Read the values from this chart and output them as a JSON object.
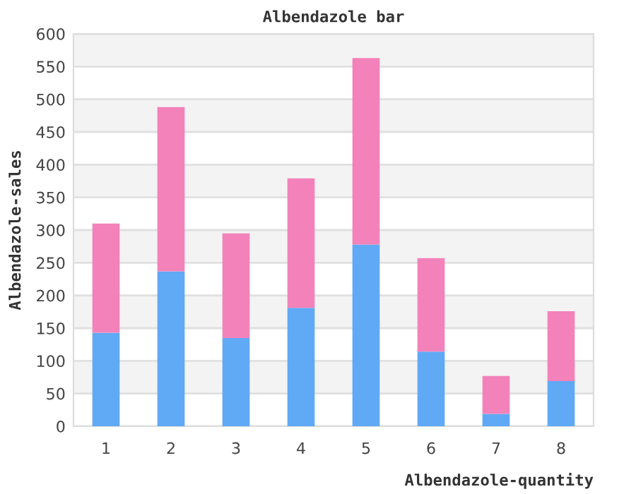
{
  "chart_data": {
    "type": "bar",
    "title": "Albendazole bar",
    "xlabel": "Albendazole-quantity",
    "ylabel": "Albendazole-sales",
    "categories": [
      "1",
      "2",
      "3",
      "4",
      "5",
      "6",
      "7",
      "8"
    ],
    "stacked": true,
    "series": [
      {
        "color": "#60a9f4",
        "values": [
          143,
          237,
          135,
          181,
          278,
          114,
          19,
          69
        ]
      },
      {
        "color": "#f282b9",
        "values": [
          167,
          251,
          160,
          198,
          285,
          143,
          58,
          107
        ]
      }
    ],
    "ylim": [
      0,
      600
    ],
    "yticks": [
      0,
      50,
      100,
      150,
      200,
      250,
      300,
      350,
      400,
      450,
      500,
      550,
      600
    ],
    "grid": "y"
  }
}
